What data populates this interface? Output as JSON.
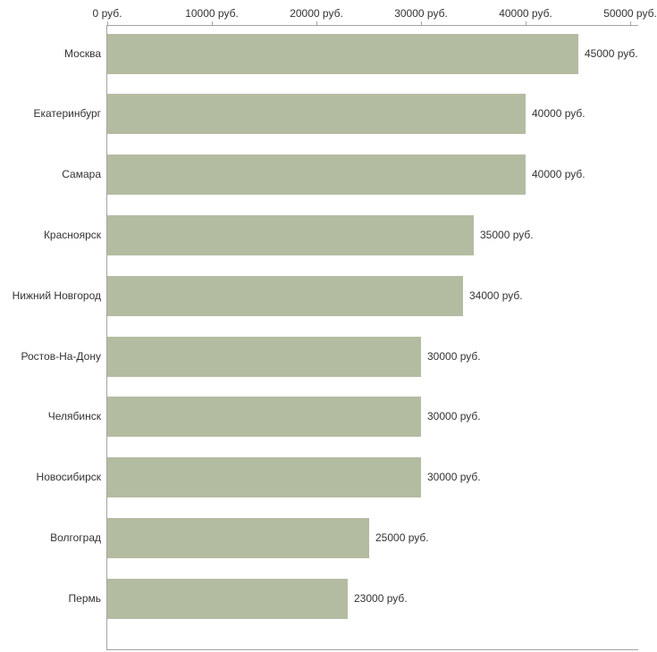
{
  "chart_data": {
    "type": "bar",
    "orientation": "horizontal",
    "title": "",
    "xlabel": "",
    "ylabel": "",
    "categories": [
      "Москва",
      "Екатеринбург",
      "Самара",
      "Красноярск",
      "Нижний Новгород",
      "Ростов-На-Дону",
      "Челябинск",
      "Новосибирск",
      "Волгоград",
      "Пермь"
    ],
    "values": [
      45000,
      40000,
      40000,
      35000,
      34000,
      30000,
      30000,
      30000,
      25000,
      23000
    ],
    "value_labels": [
      "45000 руб.",
      "40000 руб.",
      "40000 руб.",
      "35000 руб.",
      "34000 руб.",
      "30000 руб.",
      "30000 руб.",
      "30000 руб.",
      "25000 руб.",
      "23000 руб."
    ],
    "x_ticks": [
      0,
      10000,
      20000,
      30000,
      40000,
      50000
    ],
    "x_tick_labels": [
      "0 руб.",
      "10000 руб.",
      "20000 руб.",
      "30000 руб.",
      "40000 руб.",
      "50000 руб."
    ],
    "xlim": [
      0,
      50000
    ],
    "grid": false,
    "legend": false,
    "axis_position": "top",
    "bar_color": "#b3bca1",
    "axis_color": "#a3a3a3",
    "text_color": "#333333",
    "background": "#ffffff"
  }
}
